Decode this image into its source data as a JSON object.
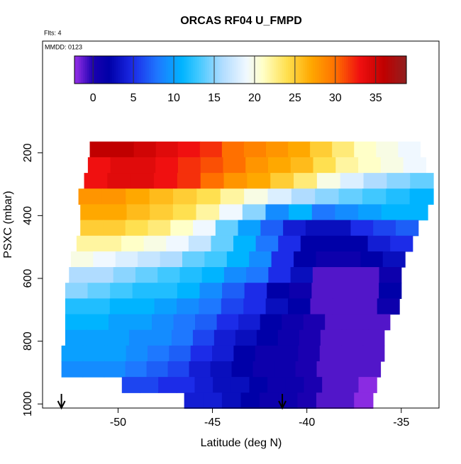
{
  "chart_data": {
    "type": "heatmap",
    "title": "ORCAS RF04 U_FMPD",
    "annotations": [
      "Flts: 4",
      "MMDD: 0123"
    ],
    "x_label": "Latitude (deg N)",
    "y_label": "PSXC (mbar)",
    "xlim": [
      -54,
      -33
    ],
    "xticks": [
      -50,
      -45,
      -40,
      -35
    ],
    "ylim": [
      -156,
      1013
    ],
    "yticks": [
      200,
      400,
      600,
      800,
      1000
    ],
    "clim": [
      -2.3,
      38.8
    ],
    "cticks": [
      0,
      5,
      10,
      15,
      20,
      25,
      30,
      35
    ],
    "colorscale": [
      {
        "value": -2,
        "color": "#8a2be2"
      },
      {
        "value": 0,
        "color": "#1a00b0"
      },
      {
        "value": 2,
        "color": "#0000a8"
      },
      {
        "value": 5,
        "color": "#1c2ce8"
      },
      {
        "value": 8,
        "color": "#1e78ff"
      },
      {
        "value": 11,
        "color": "#00b4ff"
      },
      {
        "value": 13,
        "color": "#40c8ff"
      },
      {
        "value": 16,
        "color": "#b0dcff"
      },
      {
        "value": 19,
        "color": "#f0f8ff"
      },
      {
        "value": 21,
        "color": "#ffffc8"
      },
      {
        "value": 24,
        "color": "#ffe050"
      },
      {
        "value": 27,
        "color": "#ffa800"
      },
      {
        "value": 30,
        "color": "#ff7000"
      },
      {
        "value": 33,
        "color": "#f01010"
      },
      {
        "value": 36,
        "color": "#c00000"
      },
      {
        "value": 38.8,
        "color": "#902020"
      }
    ],
    "rows": [
      {
        "pressure": 189,
        "lat_range": [
          -51.5,
          -34.0
        ],
        "values": [
          36,
          36,
          35,
          34,
          33,
          32,
          30,
          29,
          28,
          27,
          25,
          23,
          21,
          20,
          19
        ]
      },
      {
        "pressure": 239,
        "lat_range": [
          -51.6,
          -33.7
        ],
        "values": [
          33,
          34,
          34,
          33,
          32,
          31,
          30,
          28,
          27,
          26,
          24,
          22,
          21,
          20,
          19
        ]
      },
      {
        "pressure": 289,
        "lat_range": [
          -51.8,
          -33.3
        ],
        "values": [
          33,
          34,
          34,
          33,
          32,
          30,
          28,
          27,
          25,
          23,
          20,
          18,
          16,
          15,
          14
        ]
      },
      {
        "pressure": 339,
        "lat_range": [
          -52.1,
          -33.3
        ],
        "values": [
          28,
          28,
          27,
          26,
          25,
          24,
          22,
          20,
          18,
          16,
          15,
          14,
          13,
          12,
          11
        ]
      },
      {
        "pressure": 389,
        "lat_range": [
          -52.0,
          -33.6
        ],
        "values": [
          27,
          27,
          26,
          25,
          24,
          22,
          19,
          15,
          9,
          11,
          8,
          9,
          10,
          11,
          11
        ]
      },
      {
        "pressure": 439,
        "lat_range": [
          -52.0,
          -34.1
        ],
        "values": [
          25,
          25,
          24,
          23,
          21,
          19,
          14,
          10,
          7,
          4,
          3,
          3,
          5,
          6,
          7
        ]
      },
      {
        "pressure": 489,
        "lat_range": [
          -52.2,
          -34.4
        ],
        "values": [
          22,
          22,
          21,
          20,
          19,
          17,
          14,
          11,
          8,
          5,
          2,
          2,
          2,
          4,
          5
        ]
      },
      {
        "pressure": 539,
        "lat_range": [
          -52.5,
          -34.8
        ],
        "values": [
          20,
          19,
          18,
          17,
          16,
          14,
          13,
          11,
          9,
          5,
          2,
          1,
          1,
          2,
          3
        ]
      },
      {
        "pressure": 589,
        "lat_range": [
          -52.6,
          -35.0
        ],
        "values": [
          16,
          16,
          15,
          14,
          13,
          12,
          11,
          9,
          8,
          5,
          3,
          -1,
          -1,
          -1,
          1
        ]
      },
      {
        "pressure": 639,
        "lat_range": [
          -52.8,
          -35.0
        ],
        "values": [
          15,
          14,
          13,
          12,
          12,
          11,
          9,
          7,
          5,
          2,
          1,
          -1,
          -1,
          -1,
          2
        ]
      },
      {
        "pressure": 689,
        "lat_range": [
          -52.8,
          -35.1
        ],
        "values": [
          12,
          12,
          11,
          11,
          10,
          9,
          8,
          6,
          5,
          3,
          2,
          -1,
          -1,
          -1,
          1
        ]
      },
      {
        "pressure": 739,
        "lat_range": [
          -52.8,
          -35.6
        ],
        "values": [
          11,
          11,
          10,
          10,
          9,
          8,
          7,
          5,
          4,
          2,
          1,
          0,
          -1,
          -1,
          -1
        ]
      },
      {
        "pressure": 789,
        "lat_range": [
          -52.8,
          -35.9
        ],
        "values": [
          10,
          10,
          10,
          9,
          9,
          8,
          6,
          4,
          3,
          2,
          1,
          0,
          -1,
          -1,
          -1
        ]
      },
      {
        "pressure": 839,
        "lat_range": [
          -53.0,
          -35.9
        ],
        "values": [
          10,
          10,
          10,
          9,
          8,
          7,
          5,
          4,
          2,
          1,
          1,
          0,
          -1,
          -1,
          -1
        ]
      },
      {
        "pressure": 889,
        "lat_range": [
          -53.0,
          -36.1
        ],
        "values": [
          9,
          9,
          9,
          8,
          7,
          6,
          4,
          3,
          2,
          1,
          1,
          0,
          -1,
          -1,
          -1
        ]
      },
      {
        "pressure": 939,
        "lat_range": [
          -49.8,
          -36.3
        ],
        "values": [
          6,
          6,
          5,
          5,
          4,
          3,
          3,
          2,
          1,
          1,
          0,
          -1,
          -1,
          -2
        ]
      },
      {
        "pressure": 989,
        "lat_range": [
          -46.5,
          -36.5
        ],
        "values": [
          4,
          4,
          3,
          2,
          1,
          1,
          0,
          -1,
          -1,
          -2
        ]
      }
    ],
    "arrows": [
      -53.0,
      -41.3
    ]
  }
}
